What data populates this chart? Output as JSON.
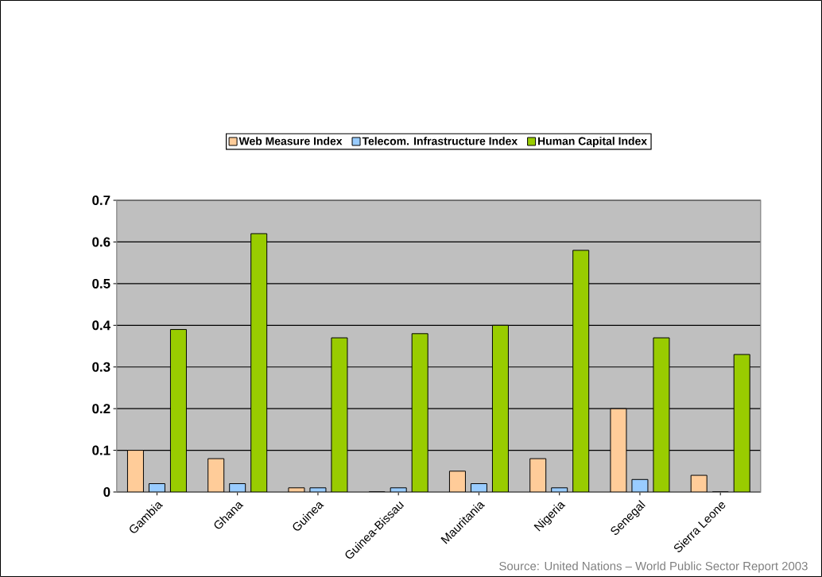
{
  "chart_data": {
    "type": "bar",
    "categories": [
      "Gambia",
      "Ghana",
      "Guinea",
      "Guinea-Bissau",
      "Mauritania",
      "Nigeria",
      "Senegal",
      "Sierra Leone"
    ],
    "series": [
      {
        "name": "Web Measure Index",
        "color": "#ffcc99",
        "values": [
          0.1,
          0.08,
          0.01,
          0.0,
          0.05,
          0.08,
          0.2,
          0.04
        ]
      },
      {
        "name": "Telecom. Infrastructure Index",
        "color": "#99ccff",
        "values": [
          0.02,
          0.02,
          0.01,
          0.01,
          0.02,
          0.01,
          0.03,
          0.0
        ]
      },
      {
        "name": "Human Capital Index",
        "color": "#99cc00",
        "values": [
          0.39,
          0.62,
          0.37,
          0.38,
          0.4,
          0.58,
          0.37,
          0.33
        ]
      }
    ],
    "ylim": [
      0,
      0.7
    ],
    "yticks": [
      0,
      0.1,
      0.2,
      0.3,
      0.4,
      0.5,
      0.6,
      0.7
    ],
    "grid": true,
    "legend": "top",
    "annotations": [
      "Source: United Nations – World Public Sector Report 2003"
    ]
  }
}
